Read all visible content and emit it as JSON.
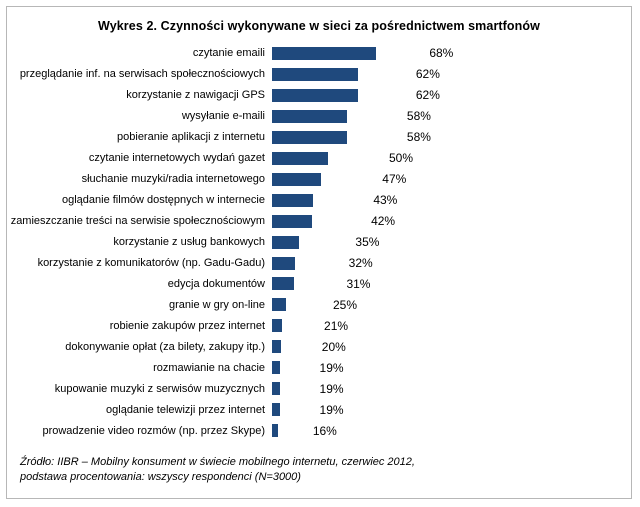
{
  "title": "Wykres 2.  Czynności wykonywane w sieci za pośrednictwem smartfonów",
  "chart_data": {
    "type": "bar",
    "orientation": "horizontal",
    "title": "Wykres 2.  Czynności wykonywane w sieci za pośrednictwem smartfonów",
    "categories": [
      "czytanie emaili",
      "przeglądanie inf. na serwisach społecznościowych",
      "korzystanie z nawigacji GPS",
      "wysyłanie e-maili",
      "pobieranie aplikacji z internetu",
      "czytanie internetowych wydań gazet",
      "słuchanie muzyki/radia internetowego",
      "oglądanie filmów dostępnych w internecie",
      "zamieszczanie treści na serwisie społecznościowym",
      "korzystanie z usług bankowych",
      "korzystanie z komunikatorów (np. Gadu-Gadu)",
      "edycja dokumentów",
      "granie w gry on-line",
      "robienie zakupów przez internet",
      "dokonywanie opłat (za bilety, zakupy itp.)",
      "rozmawianie na chacie",
      "kupowanie muzyki z serwisów muzycznych",
      "oglądanie telewizji przez internet",
      "prowadzenie video rozmów (np. przez Skype)"
    ],
    "values": [
      68,
      62,
      62,
      58,
      58,
      50,
      47,
      43,
      42,
      35,
      32,
      31,
      25,
      21,
      20,
      19,
      19,
      19,
      16
    ],
    "value_suffix": "%",
    "xlim": [
      0,
      100
    ],
    "bar_color": "#1f497d",
    "grid": false,
    "legend": false
  },
  "source": {
    "line1": "Źródło: IIBR – Mobilny konsument w świecie mobilnego internetu, czerwiec 2012,",
    "line2": "podstawa procentowania: wszyscy respondenci (N=3000)"
  }
}
